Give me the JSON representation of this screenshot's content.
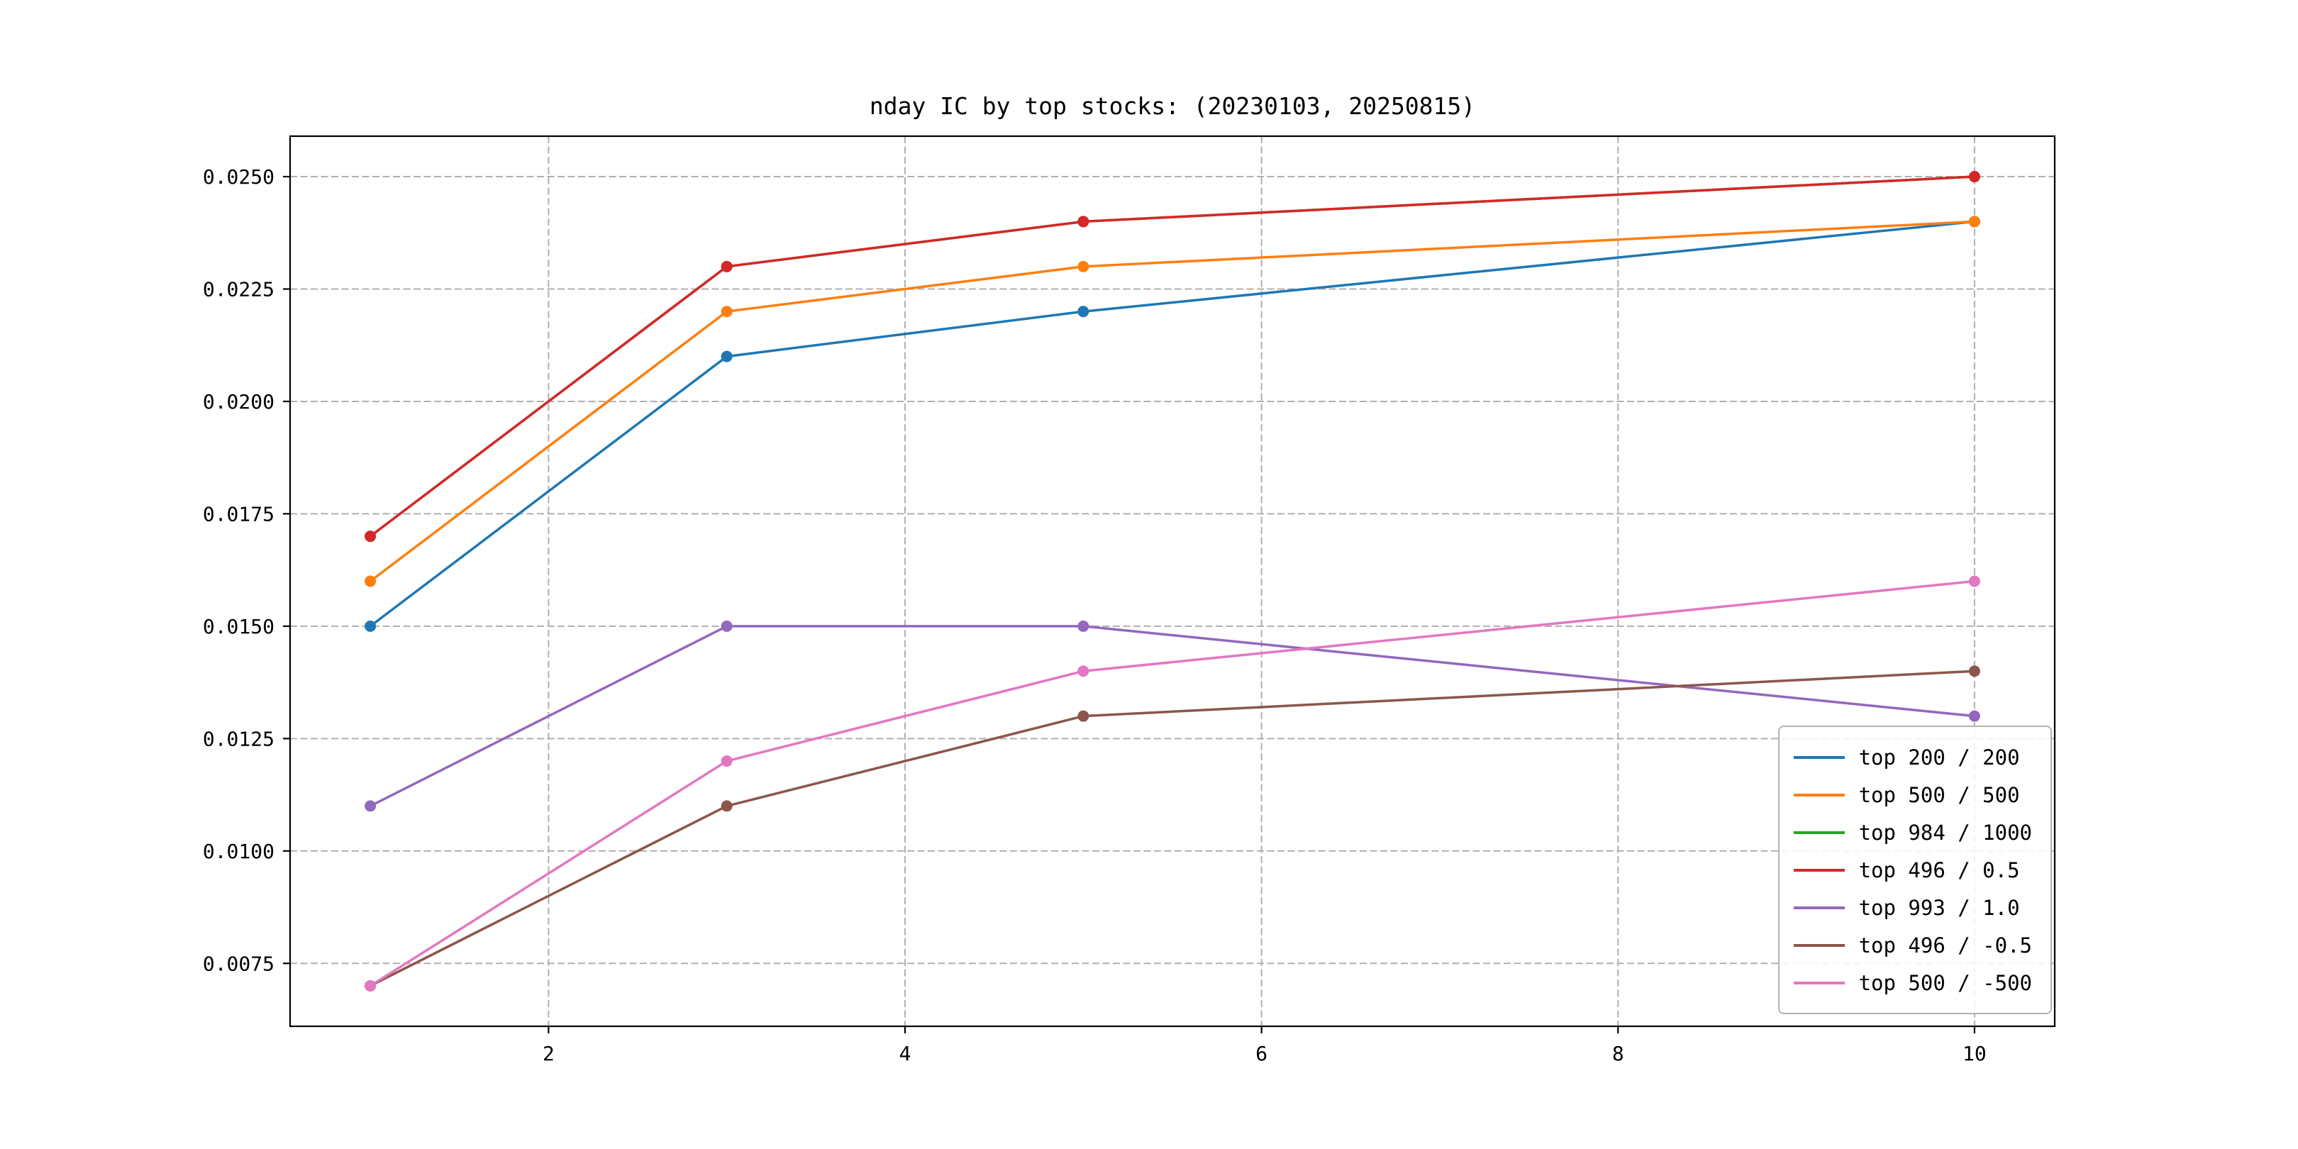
{
  "page": {
    "background": "#ffffff"
  },
  "chart_data": {
    "type": "line",
    "title": "nday IC by top stocks: (20230103, 20250815)",
    "xlabel": "",
    "ylabel": "",
    "grid": true,
    "grid_style": "dashed",
    "legend_position": "lower right",
    "x": [
      1,
      3,
      5,
      10
    ],
    "xticks": [
      2,
      4,
      6,
      8,
      10
    ],
    "yticks": [
      0.0075,
      0.01,
      0.0125,
      0.015,
      0.0175,
      0.02,
      0.0225,
      0.025
    ],
    "xlim": [
      0.55,
      10.45
    ],
    "ylim": [
      0.0061,
      0.0259
    ],
    "series": [
      {
        "name": "top 200 / 200",
        "color": "#1f77b4",
        "values": [
          0.015,
          0.021,
          0.022,
          0.024
        ]
      },
      {
        "name": "top 500 / 500",
        "color": "#ff7f0e",
        "values": [
          0.016,
          0.022,
          0.023,
          0.024
        ]
      },
      {
        "name": "top 984 / 1000",
        "color": "#2ca02c",
        "values": [
          0.017,
          0.023,
          0.024,
          0.025
        ]
      },
      {
        "name": "top 496 / 0.5",
        "color": "#d62728",
        "values": [
          0.017,
          0.023,
          0.024,
          0.025
        ]
      },
      {
        "name": "top 993 / 1.0",
        "color": "#9467bd",
        "values": [
          0.011,
          0.015,
          0.015,
          0.013
        ]
      },
      {
        "name": "top 496 / -0.5",
        "color": "#8c564b",
        "values": [
          0.007,
          0.011,
          0.013,
          0.014
        ]
      },
      {
        "name": "top 500 / -500",
        "color": "#e377c2",
        "values": [
          0.007,
          0.012,
          0.014,
          0.016
        ]
      }
    ],
    "style": {
      "grid_color": "#b0b0b0",
      "spine_color": "#000000",
      "tick_label_color": "#000000"
    }
  }
}
